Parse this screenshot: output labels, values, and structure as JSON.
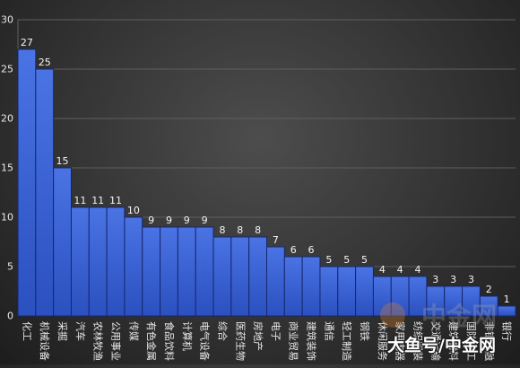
{
  "chart_data": {
    "type": "bar",
    "title": "",
    "xlabel": "",
    "ylabel": "",
    "categories": [
      "化工",
      "机械设备",
      "采掘",
      "汽车",
      "农林牧渔",
      "公用事业",
      "传媒",
      "有色金属",
      "食品饮料",
      "计算机",
      "电气设备",
      "综合",
      "医药生物",
      "房地产",
      "电子",
      "商业贸易",
      "建筑装饰",
      "通信",
      "轻工制造",
      "钢铁",
      "休闲服务",
      "家用电器",
      "纺织服装",
      "交通运输",
      "建筑材料",
      "国防军工",
      "非银金融",
      "银行"
    ],
    "values": [
      27,
      25,
      15,
      11,
      11,
      11,
      10,
      9,
      9,
      9,
      9,
      8,
      8,
      8,
      7,
      6,
      6,
      5,
      5,
      5,
      4,
      4,
      4,
      3,
      3,
      3,
      2,
      1
    ],
    "yticks": [
      "0",
      "5",
      "10",
      "15",
      "20",
      "25",
      "30"
    ],
    "ylim": [
      0,
      30
    ],
    "grid": true,
    "legend": "none"
  },
  "colors": {
    "bar_top": "#4a73e4",
    "bar_bottom": "#2b50bf",
    "bar_edge": "#16276f",
    "grid": "#5e5e5e",
    "axis": "#8a8a8a",
    "text": "#e8e8e8",
    "data_label": "#f4f4f4",
    "logo_circle": "#e0822a"
  },
  "watermark": {
    "text": "大鱼号/中金网",
    "logo_text": "中金网"
  }
}
